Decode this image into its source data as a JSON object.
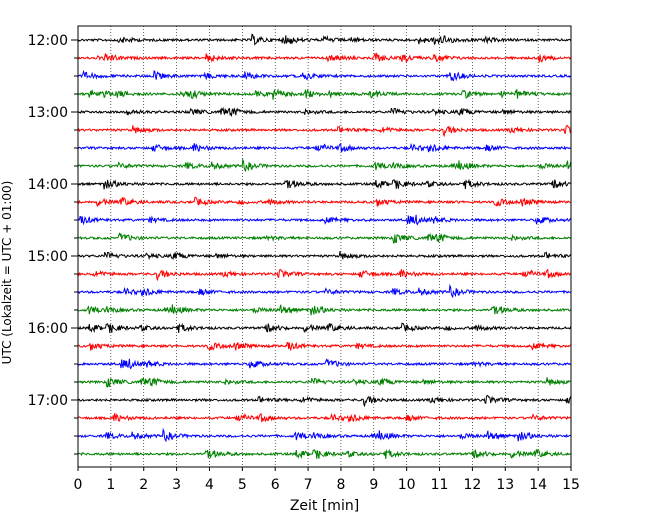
{
  "chart_data": {
    "type": "line",
    "title": "",
    "xlabel": "Zeit  [min]",
    "ylabel": "UTC (Lokalzeit = UTC + 01:00)",
    "xlim": [
      0,
      15
    ],
    "x_ticks": [
      0,
      1,
      2,
      3,
      4,
      5,
      6,
      7,
      8,
      9,
      10,
      11,
      12,
      13,
      14,
      15
    ],
    "x_tick_labels": [
      "0",
      "1",
      "2",
      "3",
      "4",
      "5",
      "6",
      "7",
      "8",
      "9",
      "10",
      "11",
      "12",
      "13",
      "14",
      "15"
    ],
    "y_tick_labels": [
      "12:00",
      "13:00",
      "14:00",
      "15:00",
      "16:00",
      "17:00"
    ],
    "grid": "vertical dotted at each minute",
    "trace_interval_minutes": 15,
    "trace_colors_cycle": [
      "#000000",
      "#ff0000",
      "#0000ff",
      "#008000"
    ],
    "traces": [
      {
        "start": "12:00",
        "color": "#000000"
      },
      {
        "start": "12:15",
        "color": "#ff0000"
      },
      {
        "start": "12:30",
        "color": "#0000ff"
      },
      {
        "start": "12:45",
        "color": "#008000"
      },
      {
        "start": "13:00",
        "color": "#000000"
      },
      {
        "start": "13:15",
        "color": "#ff0000"
      },
      {
        "start": "13:30",
        "color": "#0000ff"
      },
      {
        "start": "13:45",
        "color": "#008000"
      },
      {
        "start": "14:00",
        "color": "#000000"
      },
      {
        "start": "14:15",
        "color": "#ff0000"
      },
      {
        "start": "14:30",
        "color": "#0000ff"
      },
      {
        "start": "14:45",
        "color": "#008000"
      },
      {
        "start": "15:00",
        "color": "#000000"
      },
      {
        "start": "15:15",
        "color": "#ff0000"
      },
      {
        "start": "15:30",
        "color": "#0000ff"
      },
      {
        "start": "15:45",
        "color": "#008000"
      },
      {
        "start": "16:00",
        "color": "#000000"
      },
      {
        "start": "16:15",
        "color": "#ff0000"
      },
      {
        "start": "16:30",
        "color": "#0000ff"
      },
      {
        "start": "16:45",
        "color": "#008000"
      },
      {
        "start": "17:00",
        "color": "#000000"
      },
      {
        "start": "17:15",
        "color": "#ff0000"
      },
      {
        "start": "17:30",
        "color": "#0000ff"
      },
      {
        "start": "17:45",
        "color": "#008000"
      }
    ]
  }
}
